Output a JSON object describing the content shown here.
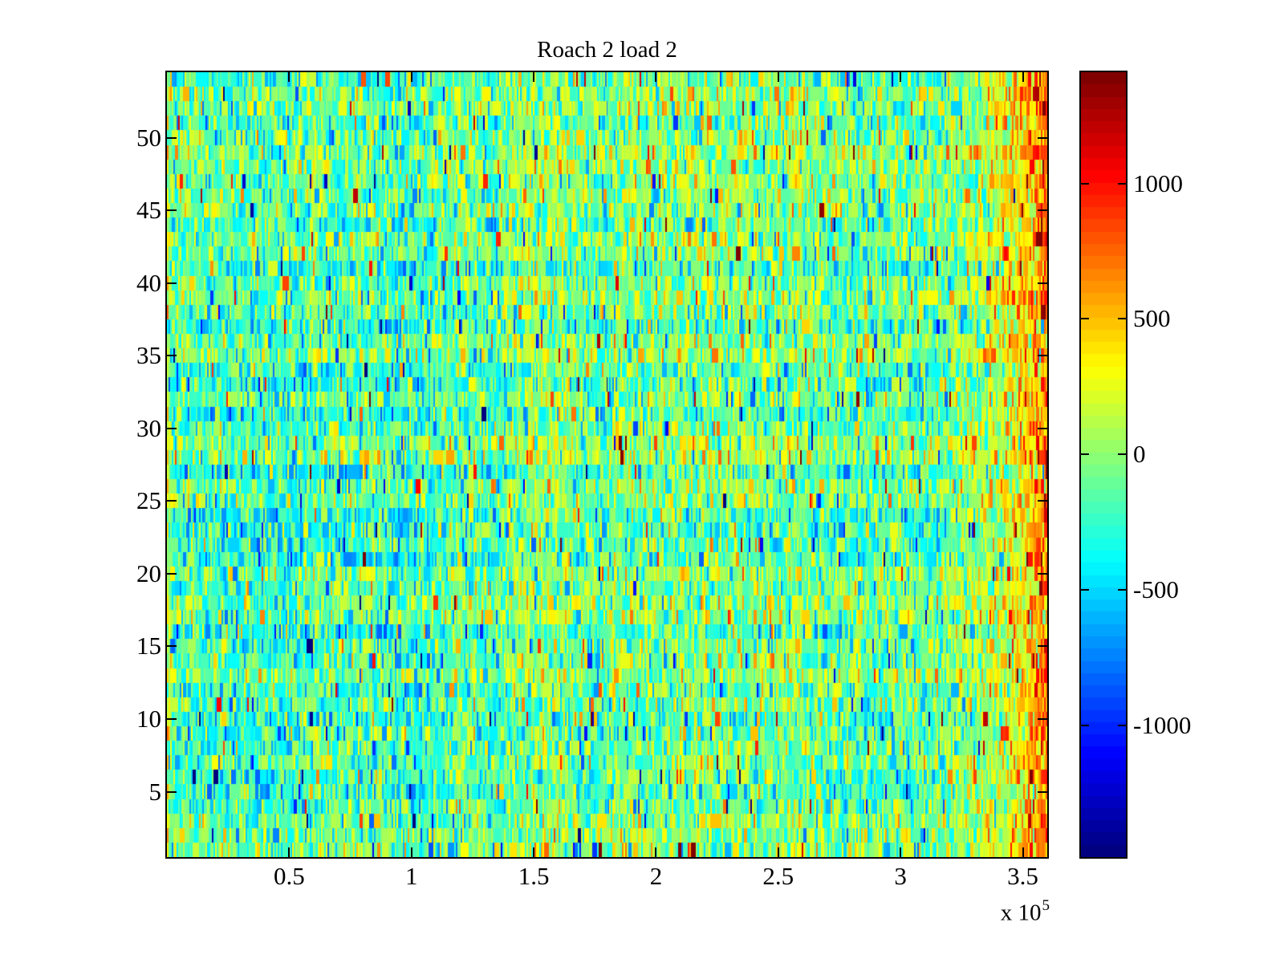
{
  "figure": {
    "title": "Roach 2 load 2",
    "background_color": "#ffffff",
    "axis_color": "#000000"
  },
  "chart_data": {
    "type": "heatmap",
    "title": "Roach 2 load 2",
    "xlabel": "",
    "ylabel": "",
    "grid": false,
    "x_axis": {
      "range": [
        0,
        360000
      ],
      "tick_values": [
        50000,
        100000,
        150000,
        200000,
        250000,
        300000,
        350000
      ],
      "tick_labels": [
        "0.5",
        "1",
        "1.5",
        "2",
        "2.5",
        "3",
        "3.5"
      ],
      "multiplier_base": "x 10",
      "multiplier_exponent": "5"
    },
    "y_axis": {
      "range": [
        0.5,
        54.5
      ],
      "rows": 54,
      "tick_values": [
        5,
        10,
        15,
        20,
        25,
        30,
        35,
        40,
        45,
        50
      ],
      "tick_labels": [
        "5",
        "10",
        "15",
        "20",
        "25",
        "30",
        "35",
        "40",
        "45",
        "50"
      ]
    },
    "colorbar": {
      "colormap": "jet",
      "quantization_levels": 64,
      "range": [
        -1485,
        1410
      ],
      "tick_values": [
        1000,
        500,
        0,
        -500,
        -1000
      ],
      "tick_labels": [
        "1000",
        "500",
        "0",
        "-500",
        "-1000"
      ]
    },
    "noise_model": {
      "description": "Random mosaic of thin vertical color cells per row; mostly teal-green/yellow mid-range values with sparse orange/red and blue spikes; values rise strongly (orange/red band) near the right edge and slightly at the very left edge.",
      "seed": 1337,
      "cols": 549,
      "base_mean": -135,
      "noise_std": 295,
      "row_bias_min": -110,
      "row_bias_max": 145,
      "col_walk_step": 16,
      "col_bias_limit": 140,
      "run_prob": 0.25,
      "spike_prob": 0.022,
      "spike_min": 520,
      "spike_spread": 880,
      "spike_positive_prob": 0.55,
      "right_band_start_frac": 0.88,
      "right_band_boost": 820,
      "left_edge_boost": 260,
      "left_edge_decay": 1.0
    }
  }
}
